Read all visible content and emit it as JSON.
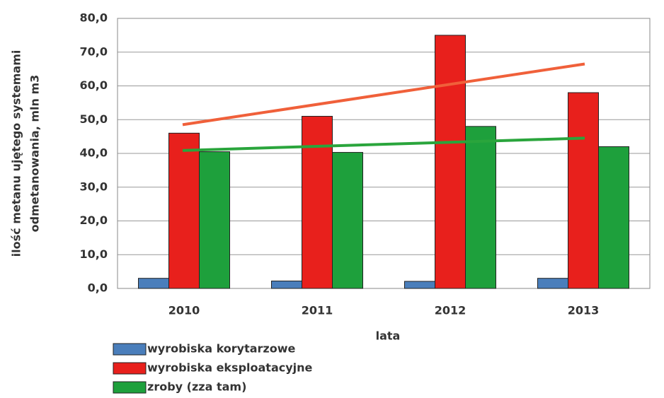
{
  "chart_data": {
    "type": "bar",
    "xlabel": "lata",
    "ylabel": [
      "ilość metanu ujętego systemami",
      "odmetanowania, mln m3"
    ],
    "categories": [
      "2010",
      "2011",
      "2012",
      "2013"
    ],
    "series": [
      {
        "name": "wyrobiska korytarzowe",
        "color": "#4a7ebb",
        "values": [
          3.0,
          2.2,
          2.1,
          3.0
        ]
      },
      {
        "name": "wyrobiska eksploatacyjne",
        "color": "#e8201c",
        "values": [
          46.0,
          51.0,
          75.0,
          58.0
        ],
        "trendline": true,
        "trend_color": "#f0603a"
      },
      {
        "name": "zroby (zza tam)",
        "color": "#1ea03c",
        "values": [
          40.5,
          40.3,
          48.0,
          42.0
        ],
        "trendline": true,
        "trend_color": "#2aa53c"
      }
    ],
    "ylim": [
      0,
      80
    ],
    "yticks": [
      {
        "value": 0,
        "label": "0,0"
      },
      {
        "value": 10,
        "label": "10,0"
      },
      {
        "value": 20,
        "label": "20,0"
      },
      {
        "value": 30,
        "label": "30,0"
      },
      {
        "value": 40,
        "label": "40,0"
      },
      {
        "value": 50,
        "label": "50,0"
      },
      {
        "value": 60,
        "label": "60,0"
      },
      {
        "value": 70,
        "label": "70,0"
      },
      {
        "value": 80,
        "label": "80,0"
      }
    ],
    "grid": true,
    "legend": "bottom-left"
  }
}
